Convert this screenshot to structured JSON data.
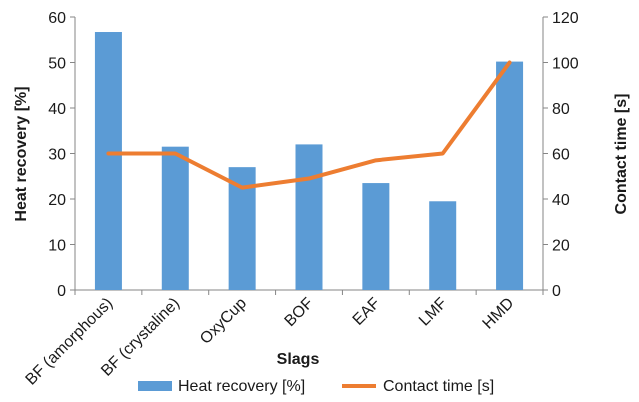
{
  "chart_data": {
    "type": "bar",
    "categories": [
      "BF (amorphous)",
      "BF (crystaline)",
      "OxyCup",
      "BOF",
      "EAF",
      "LMF",
      "HMD"
    ],
    "series": [
      {
        "name": "Heat recovery [%]",
        "type": "bar",
        "axis": "left",
        "color": "#5b9bd5",
        "values": [
          56.7,
          31.5,
          27.0,
          32.0,
          23.5,
          19.5,
          50.2
        ]
      },
      {
        "name": "Contact time [s]",
        "type": "line",
        "axis": "right",
        "color": "#ed7d31",
        "values": [
          60,
          60,
          45,
          49,
          57,
          60,
          100
        ]
      }
    ],
    "xlabel": "Slags",
    "ylabel": "Heat recovery [%]",
    "y2label": "Contact time [s]",
    "ylim": [
      0,
      60
    ],
    "y2lim": [
      0,
      120
    ],
    "yticks": [
      "0",
      "10",
      "20",
      "30",
      "40",
      "50",
      "60"
    ],
    "y2ticks": [
      "0",
      "20",
      "40",
      "60",
      "80",
      "100",
      "120"
    ],
    "grid": false,
    "legend": "bottom"
  }
}
